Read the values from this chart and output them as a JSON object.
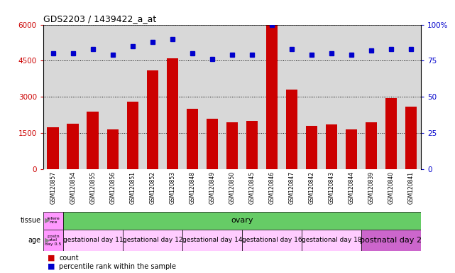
{
  "title": "GDS2203 / 1439422_a_at",
  "samples": [
    "GSM120857",
    "GSM120854",
    "GSM120855",
    "GSM120856",
    "GSM120851",
    "GSM120852",
    "GSM120853",
    "GSM120848",
    "GSM120849",
    "GSM120850",
    "GSM120845",
    "GSM120846",
    "GSM120847",
    "GSM120842",
    "GSM120843",
    "GSM120844",
    "GSM120839",
    "GSM120840",
    "GSM120841"
  ],
  "counts": [
    1750,
    1900,
    2400,
    1650,
    2800,
    4100,
    4600,
    2500,
    2100,
    1950,
    2000,
    6000,
    3300,
    1800,
    1850,
    1650,
    1950,
    2950,
    2600
  ],
  "percentiles": [
    80,
    80,
    83,
    79,
    85,
    88,
    90,
    80,
    76,
    79,
    79,
    100,
    83,
    79,
    80,
    79,
    82,
    83,
    83
  ],
  "ylim_left": [
    0,
    6000
  ],
  "ylim_right": [
    0,
    100
  ],
  "yticks_left": [
    0,
    1500,
    3000,
    4500,
    6000
  ],
  "ytick_labels_left": [
    "0",
    "1500",
    "3000",
    "4500",
    "6000"
  ],
  "yticks_right": [
    0,
    25,
    50,
    75,
    100
  ],
  "ytick_labels_right": [
    "0",
    "25",
    "50",
    "75",
    "100%"
  ],
  "bar_color": "#cc0000",
  "dot_color": "#0000cc",
  "tissue_row": {
    "reference_label": "refere\nnce",
    "reference_color": "#ff99ff",
    "ovary_label": "ovary",
    "ovary_color": "#66cc66",
    "reference_count": 1,
    "ovary_count": 18
  },
  "age_row": {
    "groups": [
      {
        "label": "postn\natal\nday 0.5",
        "count": 1,
        "color": "#ff99ff"
      },
      {
        "label": "gestational day 11",
        "count": 3,
        "color": "#ffccff"
      },
      {
        "label": "gestational day 12",
        "count": 3,
        "color": "#ffccff"
      },
      {
        "label": "gestational day 14",
        "count": 3,
        "color": "#ffccff"
      },
      {
        "label": "gestational day 16",
        "count": 3,
        "color": "#ffccff"
      },
      {
        "label": "gestational day 18",
        "count": 3,
        "color": "#ffccff"
      },
      {
        "label": "postnatal day 2",
        "count": 3,
        "color": "#cc66cc"
      }
    ]
  },
  "legend_red": "count",
  "legend_blue": "percentile rank within the sample",
  "background_color": "#ffffff",
  "plot_bg_color": "#d8d8d8",
  "grid_color": "#000000"
}
